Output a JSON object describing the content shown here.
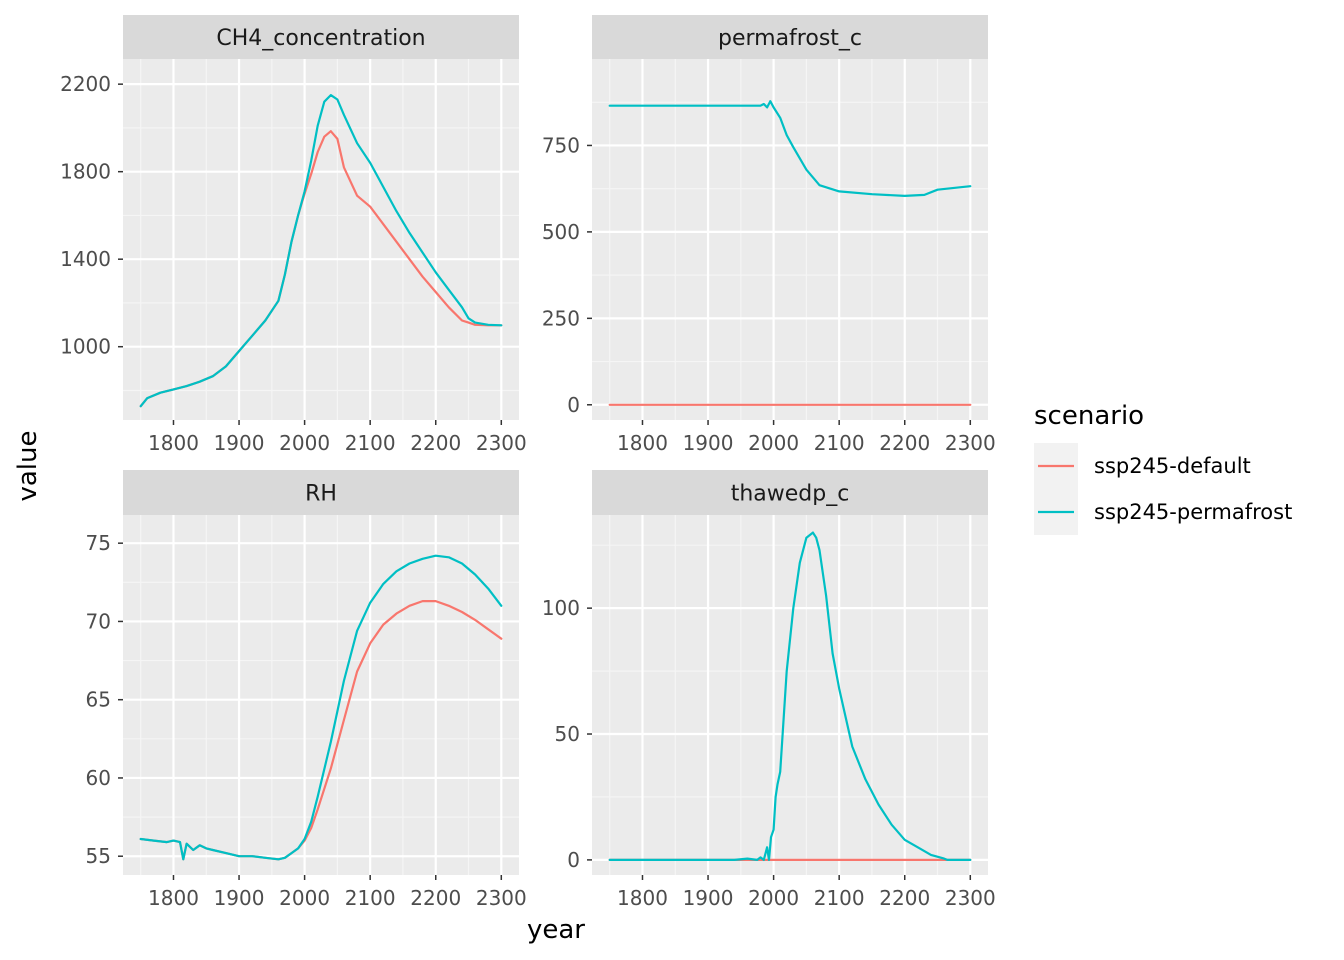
{
  "chart_data": {
    "type": "line",
    "xlabel": "year",
    "ylabel": "value",
    "legend": {
      "title": "scenario",
      "placement": "right",
      "entries": [
        {
          "name": "ssp245-default",
          "color": "#F8766D"
        },
        {
          "name": "ssp245-permafrost",
          "color": "#00BFC4"
        }
      ]
    },
    "grid": true,
    "x_ticks": [
      1800,
      1900,
      2000,
      2100,
      2200,
      2300
    ],
    "panels": [
      {
        "title": "CH4_concentration",
        "xlim": [
          1723,
          2327
        ],
        "ylim": [
          665,
          2315
        ],
        "y_ticks": [
          1000,
          1400,
          1800,
          2200
        ],
        "series": [
          {
            "name": "ssp245-default",
            "x": [
              1750,
              1760,
              1780,
              1800,
              1820,
              1840,
              1860,
              1880,
              1900,
              1920,
              1940,
              1960,
              1970,
              1980,
              1990,
              2000,
              2010,
              2020,
              2030,
              2040,
              2050,
              2060,
              2080,
              2100,
              2120,
              2140,
              2160,
              2180,
              2200,
              2220,
              2240,
              2250,
              2260,
              2280,
              2300
            ],
            "y": [
              728,
              765,
              790,
              805,
              820,
              840,
              865,
              910,
              980,
              1050,
              1120,
              1210,
              1330,
              1480,
              1600,
              1700,
              1790,
              1890,
              1960,
              1985,
              1950,
              1820,
              1690,
              1640,
              1560,
              1480,
              1400,
              1320,
              1250,
              1180,
              1120,
              1110,
              1100,
              1098,
              1098
            ]
          },
          {
            "name": "ssp245-permafrost",
            "x": [
              1750,
              1760,
              1780,
              1800,
              1820,
              1840,
              1860,
              1880,
              1900,
              1920,
              1940,
              1960,
              1970,
              1980,
              1990,
              2000,
              2010,
              2020,
              2030,
              2040,
              2050,
              2060,
              2080,
              2100,
              2120,
              2140,
              2160,
              2180,
              2200,
              2220,
              2240,
              2250,
              2260,
              2280,
              2300
            ],
            "y": [
              728,
              765,
              790,
              805,
              820,
              840,
              865,
              910,
              980,
              1050,
              1120,
              1210,
              1330,
              1480,
              1600,
              1710,
              1850,
              2010,
              2120,
              2150,
              2130,
              2060,
              1930,
              1840,
              1730,
              1620,
              1520,
              1430,
              1340,
              1260,
              1180,
              1130,
              1110,
              1100,
              1098
            ]
          }
        ]
      },
      {
        "title": "permafrost_c",
        "xlim": [
          1723,
          2327
        ],
        "ylim": [
          -44,
          1000
        ],
        "y_ticks": [
          0,
          250,
          500,
          750
        ],
        "series": [
          {
            "name": "ssp245-default",
            "x": [
              1750,
              2300
            ],
            "y": [
              0,
              0
            ]
          },
          {
            "name": "ssp245-permafrost",
            "x": [
              1750,
              1980,
              1985,
              1990,
              1995,
              2000,
              2010,
              2020,
              2030,
              2050,
              2070,
              2100,
              2150,
              2200,
              2230,
              2250,
              2300
            ],
            "y": [
              865,
              865,
              870,
              860,
              878,
              860,
              830,
              780,
              745,
              680,
              635,
              617,
              609,
              604,
              607,
              622,
              632
            ]
          }
        ]
      },
      {
        "title": "RH",
        "xlim": [
          1723,
          2327
        ],
        "ylim": [
          53.8,
          76.8
        ],
        "y_ticks": [
          55,
          60,
          65,
          70,
          75
        ],
        "series": [
          {
            "name": "ssp245-default",
            "x": [
              1750,
              1770,
              1790,
              1800,
              1810,
              1815,
              1820,
              1830,
              1840,
              1850,
              1860,
              1880,
              1900,
              1920,
              1940,
              1960,
              1970,
              1980,
              1990,
              2000,
              2010,
              2020,
              2040,
              2060,
              2080,
              2100,
              2120,
              2140,
              2160,
              2180,
              2200,
              2220,
              2240,
              2260,
              2280,
              2300
            ],
            "y": [
              56.1,
              56.0,
              55.9,
              56.0,
              55.9,
              54.8,
              55.8,
              55.4,
              55.7,
              55.5,
              55.4,
              55.2,
              55.0,
              55.0,
              54.9,
              54.8,
              54.9,
              55.2,
              55.5,
              56.0,
              56.8,
              58.0,
              60.6,
              63.7,
              66.8,
              68.6,
              69.8,
              70.5,
              71.0,
              71.3,
              71.3,
              71.0,
              70.6,
              70.1,
              69.5,
              68.9
            ]
          },
          {
            "name": "ssp245-permafrost",
            "x": [
              1750,
              1770,
              1790,
              1800,
              1810,
              1815,
              1820,
              1830,
              1840,
              1850,
              1860,
              1880,
              1900,
              1920,
              1940,
              1960,
              1970,
              1980,
              1990,
              2000,
              2010,
              2020,
              2040,
              2060,
              2080,
              2100,
              2120,
              2140,
              2160,
              2180,
              2200,
              2220,
              2240,
              2260,
              2280,
              2300
            ],
            "y": [
              56.1,
              56.0,
              55.9,
              56.0,
              55.9,
              54.8,
              55.8,
              55.4,
              55.7,
              55.5,
              55.4,
              55.2,
              55.0,
              55.0,
              54.9,
              54.8,
              54.9,
              55.2,
              55.5,
              56.1,
              57.2,
              58.8,
              62.3,
              66.2,
              69.4,
              71.2,
              72.4,
              73.2,
              73.7,
              74.0,
              74.2,
              74.1,
              73.7,
              73.0,
              72.1,
              71.0
            ]
          }
        ]
      },
      {
        "title": "thawedp_c",
        "xlim": [
          1723,
          2327
        ],
        "ylim": [
          -6,
          137
        ],
        "y_ticks": [
          0,
          50,
          100
        ],
        "series": [
          {
            "name": "ssp245-default",
            "x": [
              1750,
              2300
            ],
            "y": [
              0,
              0
            ]
          },
          {
            "name": "ssp245-permafrost",
            "x": [
              1750,
              1940,
              1960,
              1975,
              1980,
              1985,
              1990,
              1993,
              1996,
              2000,
              2003,
              2006,
              2010,
              2020,
              2030,
              2040,
              2050,
              2060,
              2065,
              2070,
              2080,
              2090,
              2100,
              2120,
              2140,
              2160,
              2180,
              2200,
              2220,
              2240,
              2260,
              2265,
              2280,
              2300
            ],
            "y": [
              0,
              0,
              0.5,
              0,
              1,
              0,
              5,
              0,
              9,
              12,
              25,
              30,
              35,
              75,
              100,
              118,
              128,
              130,
              128,
              123,
              105,
              82,
              68,
              45,
              32,
              22,
              14,
              8,
              5,
              2,
              0.5,
              0,
              0,
              0
            ]
          }
        ]
      }
    ]
  }
}
